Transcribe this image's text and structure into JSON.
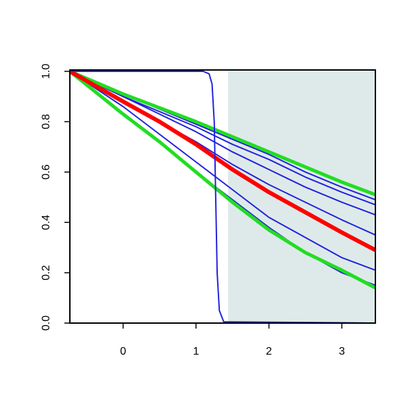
{
  "chart_data": {
    "type": "line",
    "xlim": [
      -0.73,
      3.46
    ],
    "ylim": [
      0,
      1
    ],
    "xticks": [
      0,
      1,
      2,
      3
    ],
    "yticks": [
      {
        "value": 0,
        "label": "0.0"
      },
      0.2,
      0.4,
      0.6,
      0.8,
      {
        "value": 1,
        "label": "1.0"
      }
    ],
    "shaded_xlim": [
      1.44,
      3.46
    ],
    "shade_color": "#deeaea",
    "series": [
      {
        "color": "#2222dd",
        "line_width": 2,
        "x": [
          -0.73,
          0,
          0.5,
          1,
          1.5,
          2,
          2.5,
          3,
          3.46
        ],
        "values": [
          1,
          0.91,
          0.85,
          0.79,
          0.73,
          0.67,
          0.6,
          0.54,
          0.49
        ]
      },
      {
        "color": "#2222dd",
        "line_width": 2,
        "x": [
          -0.73,
          0,
          0.5,
          1,
          1.5,
          2,
          2.5,
          3,
          3.46
        ],
        "values": [
          1,
          0.9,
          0.84,
          0.78,
          0.71,
          0.65,
          0.58,
          0.52,
          0.47
        ]
      },
      {
        "color": "#2222dd",
        "line_width": 2,
        "x": [
          -0.73,
          0,
          0.5,
          1,
          1.5,
          2,
          2.5,
          3,
          3.46
        ],
        "values": [
          1,
          0.9,
          0.83,
          0.76,
          0.68,
          0.61,
          0.54,
          0.48,
          0.43
        ]
      },
      {
        "color": "#2222dd",
        "line_width": 2,
        "x": [
          -0.73,
          0,
          0.5,
          1,
          1.5,
          2,
          2.5,
          3,
          3.46
        ],
        "values": [
          1,
          0.88,
          0.8,
          0.72,
          0.63,
          0.55,
          0.48,
          0.41,
          0.35
        ]
      },
      {
        "color": "#2222dd",
        "line_width": 2,
        "x": [
          -0.73,
          0,
          0.5,
          1,
          1.5,
          2,
          2.5,
          3,
          3.46
        ],
        "values": [
          1,
          0.86,
          0.75,
          0.64,
          0.53,
          0.42,
          0.34,
          0.26,
          0.21
        ]
      },
      {
        "color": "#2222dd",
        "line_width": 2,
        "x": [
          -0.73,
          0,
          0.5,
          1,
          1.5,
          2,
          2.5,
          3,
          3.46
        ],
        "values": [
          1,
          0.83,
          0.72,
          0.6,
          0.49,
          0.38,
          0.28,
          0.2,
          0.15
        ]
      },
      {
        "color": "#22dd22",
        "line_width": 5,
        "x": [
          -0.73,
          0,
          0.5,
          1,
          1.5,
          2,
          2.5,
          3,
          3.46
        ],
        "values": [
          1,
          0.91,
          0.855,
          0.8,
          0.74,
          0.68,
          0.62,
          0.56,
          0.51
        ]
      },
      {
        "color": "#22dd22",
        "line_width": 5,
        "x": [
          -0.73,
          0,
          0.5,
          1,
          1.5,
          2,
          2.5,
          3,
          3.46
        ],
        "values": [
          1,
          0.83,
          0.72,
          0.6,
          0.48,
          0.37,
          0.28,
          0.21,
          0.14
        ]
      },
      {
        "color": "#ff0000",
        "line_width": 6,
        "x": [
          -0.73,
          0,
          0.5,
          1,
          1.5,
          2,
          2.5,
          3,
          3.46
        ],
        "values": [
          1,
          0.88,
          0.8,
          0.71,
          0.61,
          0.52,
          0.44,
          0.36,
          0.29
        ]
      },
      {
        "color": "#2222dd",
        "line_width": 2,
        "x": [
          -0.73,
          1.1,
          1.18,
          1.22,
          1.25,
          1.27,
          1.29,
          1.32,
          1.38,
          3.46
        ],
        "values": [
          1,
          1,
          0.99,
          0.95,
          0.8,
          0.5,
          0.2,
          0.05,
          0.005,
          0
        ]
      }
    ]
  }
}
